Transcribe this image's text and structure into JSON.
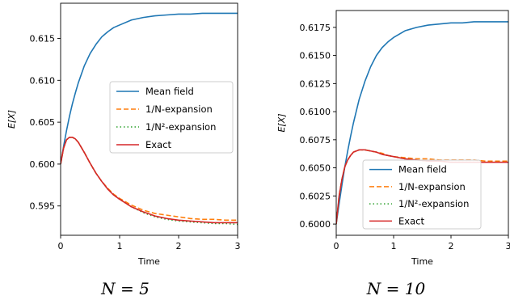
{
  "chart_data": [
    {
      "type": "line",
      "caption": "N = 5",
      "xlabel": "Time",
      "ylabel": "E[X]",
      "xlim": [
        0,
        3
      ],
      "ylim": [
        0.5915,
        0.6192
      ],
      "xticks": [
        0,
        1,
        2,
        3
      ],
      "xtick_labels": [
        "0",
        "1",
        "2",
        "3"
      ],
      "yticks": [
        0.595,
        0.6,
        0.605,
        0.61,
        0.615
      ],
      "ytick_labels": [
        "0.595",
        "0.600",
        "0.605",
        "0.610",
        "0.615"
      ],
      "grid": false,
      "legend_position": "center-right",
      "x": [
        0,
        0.05,
        0.1,
        0.15,
        0.2,
        0.25,
        0.3,
        0.4,
        0.5,
        0.6,
        0.7,
        0.8,
        0.9,
        1.0,
        1.2,
        1.4,
        1.6,
        1.8,
        2.0,
        2.2,
        2.4,
        2.6,
        2.8,
        3.0
      ],
      "series": [
        {
          "name": "Mean field",
          "color": "#1f77b4",
          "dash": "solid",
          "values": [
            0.6,
            0.6021,
            0.604,
            0.6057,
            0.6072,
            0.6085,
            0.6097,
            0.6117,
            0.6132,
            0.6143,
            0.6152,
            0.6158,
            0.6163,
            0.6166,
            0.6172,
            0.6175,
            0.6177,
            0.6178,
            0.6179,
            0.6179,
            0.618,
            0.618,
            0.618,
            0.618
          ]
        },
        {
          "name": "1/N-expansion",
          "color": "#ff7f0e",
          "dash": "dashed",
          "values": [
            0.6,
            0.6019,
            0.6029,
            0.6032,
            0.6032,
            0.603,
            0.6026,
            0.6014,
            0.6001,
            0.5989,
            0.5979,
            0.5971,
            0.5964,
            0.5959,
            0.5951,
            0.5945,
            0.5941,
            0.5939,
            0.5937,
            0.5935,
            0.5934,
            0.5934,
            0.5933,
            0.5933
          ]
        },
        {
          "name": "1/N²-expansion",
          "color": "#2ca02c",
          "dash": "dotted",
          "values": [
            0.6,
            0.6019,
            0.6029,
            0.6032,
            0.6032,
            0.603,
            0.6026,
            0.6014,
            0.6001,
            0.5989,
            0.5979,
            0.597,
            0.5963,
            0.5958,
            0.5949,
            0.5942,
            0.5937,
            0.5934,
            0.5932,
            0.5931,
            0.593,
            0.5929,
            0.5929,
            0.5928
          ]
        },
        {
          "name": "Exact",
          "color": "#d62728",
          "dash": "solid",
          "values": [
            0.6,
            0.6019,
            0.6029,
            0.6032,
            0.6032,
            0.603,
            0.6026,
            0.6014,
            0.6001,
            0.5989,
            0.5979,
            0.597,
            0.5963,
            0.5958,
            0.5949,
            0.5943,
            0.5938,
            0.5935,
            0.5933,
            0.5932,
            0.5931,
            0.593,
            0.593,
            0.593
          ]
        }
      ]
    },
    {
      "type": "line",
      "caption": "N = 10",
      "xlabel": "Time",
      "ylabel": "E[X]",
      "xlim": [
        0,
        3
      ],
      "ylim": [
        0.599,
        0.619
      ],
      "xticks": [
        0,
        1,
        2,
        3
      ],
      "xtick_labels": [
        "0",
        "1",
        "2",
        "3"
      ],
      "yticks": [
        0.6,
        0.6025,
        0.605,
        0.6075,
        0.61,
        0.6125,
        0.615,
        0.6175
      ],
      "ytick_labels": [
        "0.6000",
        "0.6025",
        "0.6050",
        "0.6075",
        "0.6100",
        "0.6125",
        "0.6150",
        "0.6175"
      ],
      "grid": false,
      "legend_position": "lower-center",
      "x": [
        0,
        0.05,
        0.1,
        0.15,
        0.2,
        0.25,
        0.3,
        0.4,
        0.5,
        0.6,
        0.7,
        0.8,
        0.9,
        1.0,
        1.2,
        1.4,
        1.6,
        1.8,
        2.0,
        2.2,
        2.4,
        2.6,
        2.8,
        3.0
      ],
      "series": [
        {
          "name": "Mean field",
          "color": "#1f77b4",
          "dash": "solid",
          "values": [
            0.6,
            0.6018,
            0.6035,
            0.6051,
            0.6065,
            0.6078,
            0.609,
            0.6111,
            0.6127,
            0.614,
            0.615,
            0.6157,
            0.6162,
            0.6166,
            0.6172,
            0.6175,
            0.6177,
            0.6178,
            0.6179,
            0.6179,
            0.618,
            0.618,
            0.618,
            0.618
          ]
        },
        {
          "name": "1/N-expansion",
          "color": "#ff7f0e",
          "dash": "dashed",
          "values": [
            0.6,
            0.6025,
            0.604,
            0.6051,
            0.6057,
            0.6061,
            0.6064,
            0.6066,
            0.6066,
            0.6065,
            0.6064,
            0.6063,
            0.6061,
            0.606,
            0.6059,
            0.6058,
            0.6058,
            0.6057,
            0.6057,
            0.6057,
            0.6057,
            0.6056,
            0.6056,
            0.6056
          ]
        },
        {
          "name": "1/N²-expansion",
          "color": "#2ca02c",
          "dash": "dotted",
          "values": [
            0.6,
            0.6025,
            0.604,
            0.6051,
            0.6057,
            0.6061,
            0.6064,
            0.6066,
            0.6066,
            0.6065,
            0.6064,
            0.6062,
            0.6061,
            0.606,
            0.6058,
            0.6057,
            0.6056,
            0.6056,
            0.6055,
            0.6055,
            0.6055,
            0.6055,
            0.6055,
            0.6055
          ]
        },
        {
          "name": "Exact",
          "color": "#d62728",
          "dash": "solid",
          "values": [
            0.6,
            0.6025,
            0.604,
            0.6051,
            0.6057,
            0.6061,
            0.6064,
            0.6066,
            0.6066,
            0.6065,
            0.6064,
            0.6062,
            0.6061,
            0.606,
            0.6058,
            0.6057,
            0.6056,
            0.6056,
            0.6055,
            0.6055,
            0.6055,
            0.6055,
            0.6055,
            0.6055
          ]
        }
      ]
    }
  ]
}
